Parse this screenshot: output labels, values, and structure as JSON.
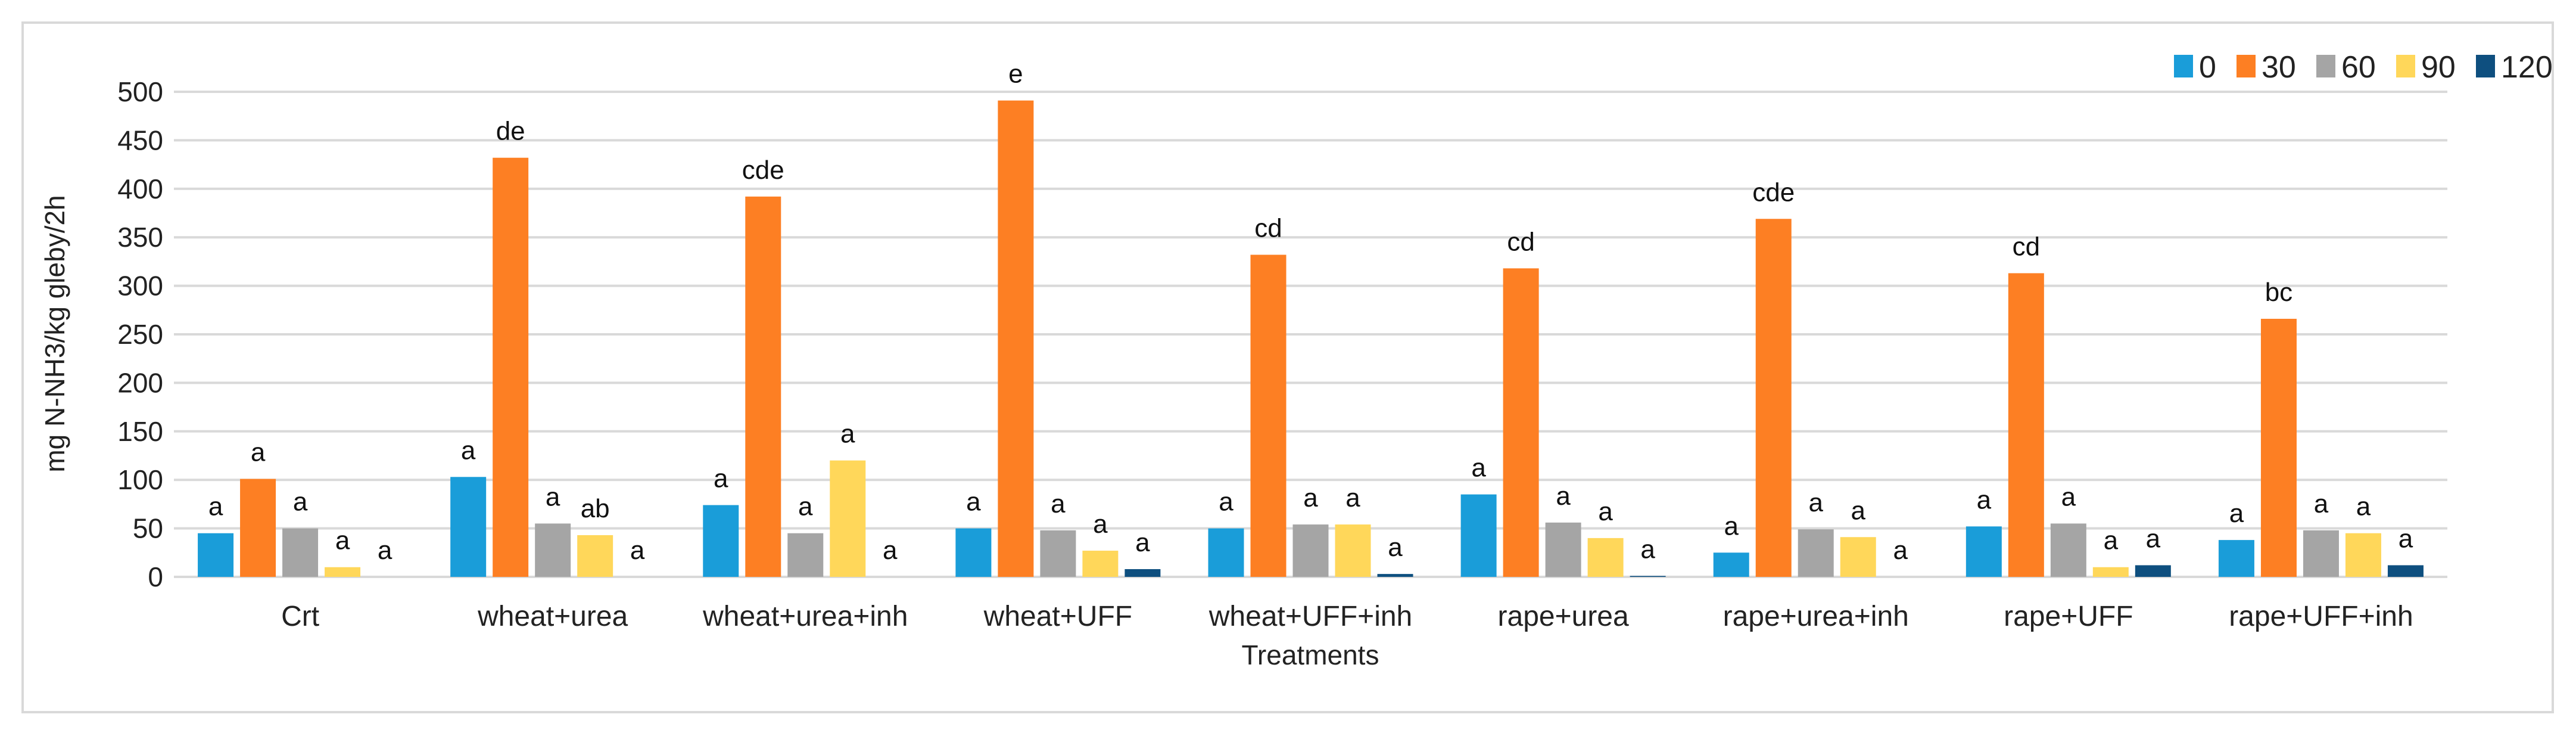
{
  "chart_data": {
    "type": "bar",
    "title": "",
    "xlabel": "Treatments",
    "ylabel": "mg N-NH3/kg gleby/2h",
    "ylim": [
      0,
      500
    ],
    "yticks": [
      0,
      50,
      100,
      150,
      200,
      250,
      300,
      350,
      400,
      450,
      500
    ],
    "grid": true,
    "legend_position": "top-right",
    "categories": [
      "Crt",
      "wheat+urea",
      "wheat+urea+inh",
      "wheat+UFF",
      "wheat+UFF+inh",
      "rape+urea",
      "rape+urea+inh",
      "rape+UFF",
      "rape+UFF+inh"
    ],
    "series": [
      {
        "name": "0",
        "color": "#1a9dd9",
        "values": [
          45,
          103,
          74,
          50,
          50,
          85,
          25,
          52,
          38
        ],
        "labels": [
          "a",
          "a",
          "a",
          "a",
          "a",
          "a",
          "a",
          "a",
          "a"
        ]
      },
      {
        "name": "30",
        "color": "#fd7f23",
        "values": [
          101,
          432,
          392,
          491,
          332,
          318,
          369,
          313,
          266
        ],
        "labels": [
          "a",
          "de",
          "cde",
          "e",
          "cd",
          "cd",
          "cde",
          "cd",
          "bc"
        ]
      },
      {
        "name": "60",
        "color": "#a5a5a5",
        "values": [
          50,
          55,
          45,
          48,
          54,
          56,
          49,
          55,
          48
        ],
        "labels": [
          "a",
          "a",
          "a",
          "a",
          "a",
          "a",
          "a",
          "a",
          "a"
        ]
      },
      {
        "name": "90",
        "color": "#ffd75a",
        "values": [
          10,
          43,
          120,
          27,
          54,
          40,
          41,
          10,
          45
        ],
        "labels": [
          "a",
          "ab",
          "a",
          "a",
          "a",
          "a",
          "a",
          "a",
          "a"
        ]
      },
      {
        "name": "120",
        "color": "#0e4f7f",
        "values": [
          0,
          0,
          0,
          8,
          3,
          1,
          0,
          12,
          12
        ],
        "labels": [
          "a",
          "a",
          "a",
          "a",
          "a",
          "a",
          "a",
          "a",
          "a"
        ]
      }
    ]
  }
}
